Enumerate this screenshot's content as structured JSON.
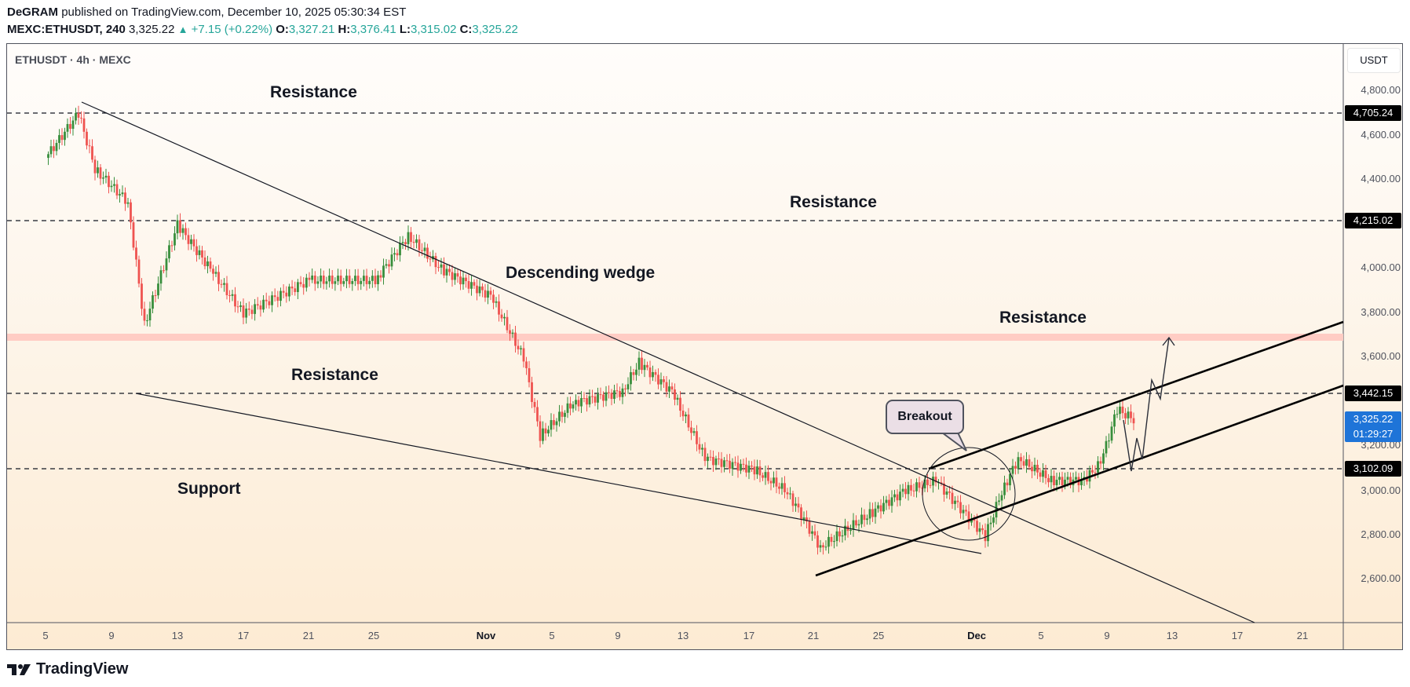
{
  "header": {
    "author": "DeGRAM",
    "published": "published on TradingView.com, December 10, 2025 05:30:34 EST",
    "symbol_interval": "MEXC:ETHUSDT, 240",
    "last": "3,325.22",
    "change": "+7.15 (+0.22%)",
    "o_label": "O:",
    "o": "3,327.21",
    "h_label": "H:",
    "h": "3,376.41",
    "l_label": "L:",
    "l": "3,315.02",
    "c_label": "C:",
    "c": "3,325.22",
    "up_color": "#26a69a"
  },
  "chart_legend": "ETHUSDT · 4h · MEXC",
  "price_axis": {
    "currency": "USDT",
    "ticks": [
      "4,800.00",
      "4,600.00",
      "4,400.00",
      "4,000.00",
      "3,800.00",
      "3,600.00",
      "3,200.00",
      "3,000.00",
      "2,800.00",
      "2,600.00"
    ],
    "levels": [
      "4,705.24",
      "4,215.02",
      "3,442.15",
      "3,102.09"
    ],
    "current_price": "3,325.22",
    "countdown": "01:29:27"
  },
  "time_axis": {
    "ticks": [
      "5",
      "9",
      "13",
      "17",
      "21",
      "25",
      "Nov",
      "5",
      "9",
      "13",
      "17",
      "21",
      "25",
      "Dec",
      "5",
      "9",
      "13",
      "17",
      "21"
    ]
  },
  "annotations": {
    "resistance_top": "Resistance",
    "resistance_mid": "Resistance",
    "resistance_zone": "Resistance",
    "resistance_low": "Resistance",
    "support": "Support",
    "wedge": "Descending wedge",
    "breakout": "Breakout"
  },
  "footer": {
    "brand": "TradingView"
  },
  "chart_data": {
    "type": "candlestick",
    "title": "ETHUSDT · 4h · MEXC",
    "xlabel": "",
    "ylabel": "USDT",
    "ylim": [
      2420,
      4900
    ],
    "x_range": [
      "Oct 3, 2025",
      "Dec 23, 2025"
    ],
    "grid": false,
    "horizontal_levels": [
      {
        "price": 4705.24,
        "label": "Resistance"
      },
      {
        "price": 4215.02,
        "label": "Resistance"
      },
      {
        "price": 3442.15,
        "label": "Resistance"
      },
      {
        "price": 3102.09,
        "label": "Support"
      }
    ],
    "resistance_zone": {
      "from": 3680,
      "to": 3710,
      "color": "#ffccc4"
    },
    "approx_closes": [
      {
        "date": "Oct 5",
        "close": 4500
      },
      {
        "date": "Oct 7",
        "close": 4700
      },
      {
        "date": "Oct 8",
        "close": 4450
      },
      {
        "date": "Oct 10",
        "close": 4300
      },
      {
        "date": "Oct 11",
        "close": 3750
      },
      {
        "date": "Oct 13",
        "close": 4200
      },
      {
        "date": "Oct 15",
        "close": 4000
      },
      {
        "date": "Oct 17",
        "close": 3800
      },
      {
        "date": "Oct 21",
        "close": 3950
      },
      {
        "date": "Oct 25",
        "close": 3950
      },
      {
        "date": "Oct 27",
        "close": 4150
      },
      {
        "date": "Oct 29",
        "close": 4000
      },
      {
        "date": "Nov 1",
        "close": 3880
      },
      {
        "date": "Nov 3",
        "close": 3600
      },
      {
        "date": "Nov 4",
        "close": 3250
      },
      {
        "date": "Nov 6",
        "close": 3400
      },
      {
        "date": "Nov 9",
        "close": 3450
      },
      {
        "date": "Nov 10",
        "close": 3580
      },
      {
        "date": "Nov 12",
        "close": 3450
      },
      {
        "date": "Nov 14",
        "close": 3150
      },
      {
        "date": "Nov 17",
        "close": 3100
      },
      {
        "date": "Nov 19",
        "close": 3000
      },
      {
        "date": "Nov 21",
        "close": 2750
      },
      {
        "date": "Nov 24",
        "close": 2900
      },
      {
        "date": "Nov 26",
        "close": 3000
      },
      {
        "date": "Nov 28",
        "close": 3050
      },
      {
        "date": "Dec 1",
        "close": 2800
      },
      {
        "date": "Dec 2",
        "close": 3000
      },
      {
        "date": "Dec 3",
        "close": 3150
      },
      {
        "date": "Dec 5",
        "close": 3050
      },
      {
        "date": "Dec 7",
        "close": 3050
      },
      {
        "date": "Dec 8",
        "close": 3130
      },
      {
        "date": "Dec 9",
        "close": 3370
      },
      {
        "date": "Dec 10",
        "close": 3325.22
      }
    ],
    "pattern": "Descending wedge with breakout into ascending channel; projection to ~3,700 resistance zone"
  }
}
